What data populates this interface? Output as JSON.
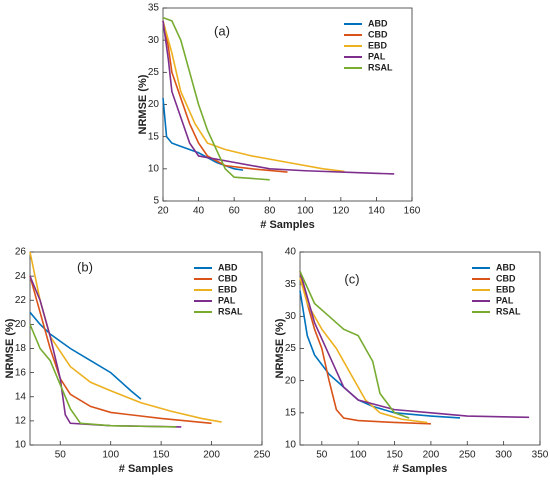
{
  "chart_data": [
    {
      "type": "line",
      "annotation": "(a)",
      "xlabel": "# Samples",
      "ylabel": "NRMSE (%)",
      "xlim": [
        20,
        160
      ],
      "xticks": [
        20,
        40,
        60,
        80,
        100,
        120,
        140,
        160
      ],
      "ylim": [
        5,
        35
      ],
      "yticks": [
        5,
        10,
        15,
        20,
        25,
        30,
        35
      ],
      "legend": "upper right",
      "series": [
        {
          "name": "ABD",
          "color": "#0072bd",
          "x": [
            20,
            22,
            25,
            30,
            40,
            50,
            60,
            65
          ],
          "values": [
            21,
            15,
            14,
            13.5,
            12.5,
            11,
            10,
            9.8
          ]
        },
        {
          "name": "CBD",
          "color": "#d95319",
          "x": [
            20,
            23,
            25,
            30,
            35,
            40,
            45,
            55,
            70,
            90
          ],
          "values": [
            33,
            29,
            25,
            21,
            17,
            14,
            12,
            10.5,
            10,
            9.5
          ]
        },
        {
          "name": "EBD",
          "color": "#edb120",
          "x": [
            20,
            25,
            30,
            38,
            45,
            55,
            70,
            90,
            110,
            122
          ],
          "values": [
            33,
            28,
            22,
            17,
            14,
            13,
            12,
            11,
            10,
            9.6
          ]
        },
        {
          "name": "PAL",
          "color": "#7e2f8e",
          "x": [
            20,
            23,
            25,
            30,
            35,
            40,
            60,
            80,
            100,
            130,
            150
          ],
          "values": [
            33,
            27,
            22,
            18,
            14,
            12,
            11,
            10,
            9.7,
            9.4,
            9.2
          ]
        },
        {
          "name": "RSAL",
          "color": "#77ac30",
          "x": [
            20,
            25,
            30,
            35,
            40,
            45,
            50,
            55,
            60,
            70,
            80
          ],
          "values": [
            33.5,
            33,
            30,
            25,
            20,
            16,
            13,
            10,
            8.7,
            8.5,
            8.3
          ]
        }
      ]
    },
    {
      "type": "line",
      "annotation": "(b)",
      "xlabel": "# Samples",
      "ylabel": "NRMSE (%)",
      "xlim": [
        20,
        250
      ],
      "xticks": [
        50,
        100,
        150,
        200,
        250
      ],
      "ylim": [
        10,
        26
      ],
      "yticks": [
        10,
        12,
        14,
        16,
        18,
        20,
        22,
        24,
        26
      ],
      "legend": "upper right",
      "series": [
        {
          "name": "ABD",
          "color": "#0072bd",
          "x": [
            20,
            30,
            40,
            60,
            80,
            100,
            120,
            130
          ],
          "values": [
            21,
            20,
            19.2,
            18,
            17,
            16,
            14.5,
            13.8
          ]
        },
        {
          "name": "CBD",
          "color": "#d95319",
          "x": [
            20,
            30,
            40,
            50,
            60,
            80,
            100,
            150,
            200
          ],
          "values": [
            24,
            21,
            18,
            15.5,
            14.2,
            13.2,
            12.7,
            12.2,
            11.8
          ]
        },
        {
          "name": "EBD",
          "color": "#edb120",
          "x": [
            20,
            30,
            40,
            60,
            80,
            100,
            130,
            160,
            190,
            210
          ],
          "values": [
            26,
            22,
            19,
            16.5,
            15.2,
            14.5,
            13.5,
            12.8,
            12.2,
            11.9
          ]
        },
        {
          "name": "PAL",
          "color": "#7e2f8e",
          "x": [
            20,
            30,
            40,
            50,
            55,
            60,
            100,
            170
          ],
          "values": [
            24,
            22,
            19,
            15.5,
            12.5,
            11.8,
            11.6,
            11.5
          ]
        },
        {
          "name": "RSAL",
          "color": "#77ac30",
          "x": [
            20,
            30,
            40,
            50,
            60,
            70,
            100,
            165
          ],
          "values": [
            20,
            18,
            17,
            15,
            13,
            11.8,
            11.6,
            11.5
          ]
        }
      ]
    },
    {
      "type": "line",
      "annotation": "(c)",
      "xlabel": "# Samples",
      "ylabel": "NRMSE (%)",
      "xlim": [
        20,
        350
      ],
      "xticks": [
        50,
        100,
        150,
        200,
        250,
        300,
        350
      ],
      "ylim": [
        10,
        40
      ],
      "yticks": [
        10,
        15,
        20,
        25,
        30,
        35,
        40
      ],
      "legend": "upper right",
      "series": [
        {
          "name": "ABD",
          "color": "#0072bd",
          "x": [
            20,
            30,
            40,
            60,
            80,
            100,
            120,
            150,
            200,
            240
          ],
          "values": [
            34,
            27,
            24,
            21,
            19,
            17,
            16,
            15,
            14.5,
            14.2
          ]
        },
        {
          "name": "CBD",
          "color": "#d95319",
          "x": [
            20,
            30,
            40,
            50,
            60,
            70,
            80,
            100,
            150,
            200
          ],
          "values": [
            37,
            32,
            28,
            25,
            20,
            15.5,
            14.2,
            13.8,
            13.5,
            13.3
          ]
        },
        {
          "name": "EBD",
          "color": "#edb120",
          "x": [
            20,
            30,
            50,
            70,
            90,
            110,
            130,
            160,
            195
          ],
          "values": [
            36,
            32,
            28,
            25,
            21,
            17,
            15,
            14,
            13.5
          ]
        },
        {
          "name": "PAL",
          "color": "#7e2f8e",
          "x": [
            20,
            30,
            40,
            60,
            80,
            100,
            150,
            200,
            250,
            335
          ],
          "values": [
            37,
            33,
            29,
            24,
            19,
            17,
            15.5,
            15,
            14.5,
            14.3
          ]
        },
        {
          "name": "RSAL",
          "color": "#77ac30",
          "x": [
            20,
            40,
            60,
            80,
            100,
            120,
            130,
            150,
            170
          ],
          "values": [
            37,
            32,
            30,
            28,
            27,
            23,
            18,
            15,
            14.2
          ]
        }
      ]
    }
  ]
}
